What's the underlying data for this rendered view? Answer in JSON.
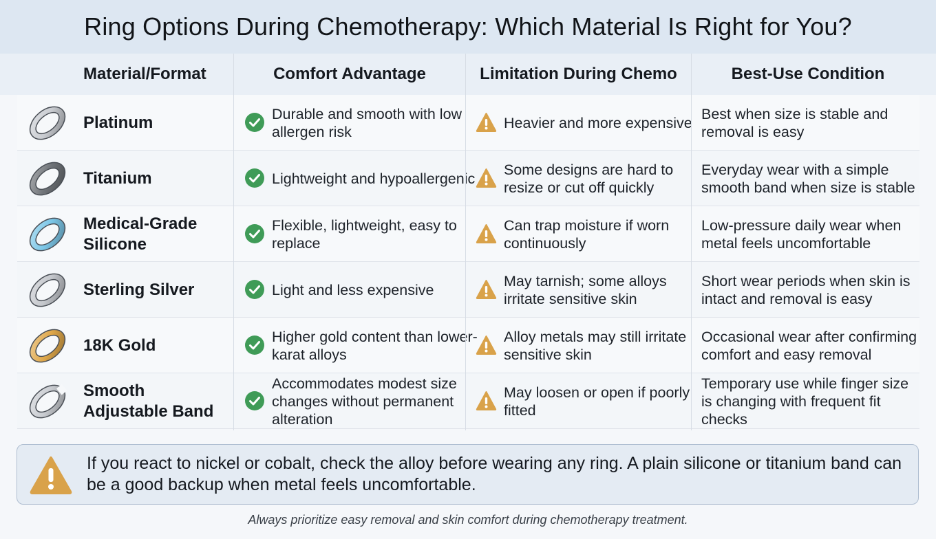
{
  "title": "Ring Options During Chemotherapy: Which Material Is Right for You?",
  "headers": {
    "material": "Material/Format",
    "comfort": "Comfort Advantage",
    "limitation": "Limitation During Chemo",
    "best_use": "Best-Use Condition"
  },
  "rows": [
    {
      "material": "Platinum",
      "ring_icon": "platinum-ring-icon",
      "ring_color": "#c9ccd1",
      "comfort": "Durable and smooth with low allergen risk",
      "limitation": "Heavier and more expensive",
      "best_use": "Best when size is stable and removal is easy"
    },
    {
      "material": "Titanium",
      "ring_icon": "titanium-ring-icon",
      "ring_color": "#6f7378",
      "comfort": "Lightweight and hypoallergenic",
      "limitation": "Some designs are hard to resize or cut off quickly",
      "best_use": "Everyday wear with a simple smooth band when size is stable"
    },
    {
      "material": "Medical-Grade Silicone",
      "ring_icon": "silicone-ring-icon",
      "ring_color": "#7cc7e8",
      "comfort": "Flexible, lightweight, easy to replace",
      "limitation": "Can trap moisture if worn continuously",
      "best_use": "Low-pressure daily wear when metal feels uncomfortable"
    },
    {
      "material": "Sterling Silver",
      "ring_icon": "silver-ring-icon",
      "ring_color": "#c4c7cc",
      "comfort": "Light and less expensive",
      "limitation": "May tarnish; some alloys irritate sensitive skin",
      "best_use": "Short wear periods when skin is intact and removal is easy"
    },
    {
      "material": "18K Gold",
      "ring_icon": "gold-ring-icon",
      "ring_color": "#e0a84a",
      "comfort": "Higher gold content than lower-karat alloys",
      "limitation": "Alloy metals may still irritate sensitive skin",
      "best_use": "Occasional wear after confirming comfort and easy removal"
    },
    {
      "material": "Smooth Adjustable Band",
      "ring_icon": "adjustable-band-icon",
      "ring_color": "#c9ccd1",
      "comfort": "Accommodates modest size changes without permanent alteration",
      "limitation": "May loosen or open if poorly fitted",
      "best_use": "Temporary use while finger size is changing with frequent fit checks"
    }
  ],
  "note": "If you react to nickel or cobalt, check the alloy before wearing any ring. A plain silicone or titanium band can be a good backup when metal feels uncomfortable.",
  "footer": "Always prioritize easy removal and skin comfort during chemotherapy treatment.",
  "colors": {
    "check_green": "#3f9b57",
    "warning_amber": "#d9a24a",
    "title_band": "#dde7f2"
  }
}
